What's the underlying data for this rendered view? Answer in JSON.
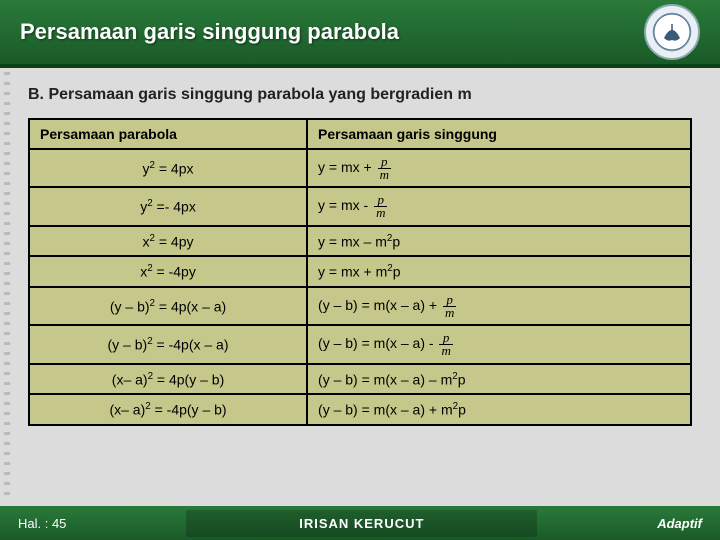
{
  "header": {
    "title": "Persamaan garis singgung parabola"
  },
  "subtitle": "B. Persamaan garis singgung parabola yang bergradien m",
  "table": {
    "headers": {
      "col1": "Persamaan parabola",
      "col2": "Persamaan garis singgung"
    },
    "rows": [
      {
        "lhs_html": "y<sup>2</sup> = 4px",
        "rhs_html": "y = mx + <span class='frac'><span class='n'>p</span><span class='d'>m</span></span>"
      },
      {
        "lhs_html": "y<sup>2</sup> =- 4px",
        "rhs_html": "y = mx - <span class='frac'><span class='n'>p</span><span class='d'>m</span></span>"
      },
      {
        "lhs_html": "x<sup>2</sup> = 4py",
        "rhs_html": "y = mx – m<sup>2</sup>p"
      },
      {
        "lhs_html": "x<sup>2</sup> = -4py",
        "rhs_html": "y = mx + m<sup>2</sup>p"
      },
      {
        "lhs_html": "(y – b)<sup>2</sup> = 4p(x – a)",
        "rhs_html": "(y – b) = m(x – a) + <span class='frac'><span class='n'>p</span><span class='d'>m</span></span>"
      },
      {
        "lhs_html": "(y – b)<sup>2</sup> = -4p(x – a)",
        "rhs_html": "(y – b) = m(x – a) - <span class='frac'><span class='n'>p</span><span class='d'>m</span></span>"
      },
      {
        "lhs_html": "(x– a)<sup>2</sup> = 4p(y – b)",
        "rhs_html": "(y – b) = m(x – a) – m<sup>2</sup>p"
      },
      {
        "lhs_html": "(x– a)<sup>2</sup> = -4p(y – b)",
        "rhs_html": "(y – b) = m(x – a) + m<sup>2</sup>p"
      }
    ]
  },
  "footer": {
    "left": "Hal. : 45",
    "center": "IRISAN KERUCUT",
    "right": "Adaptif"
  },
  "colors": {
    "header_grad_top": "#2a7a3a",
    "header_grad_bottom": "#1a5a28",
    "table_bg": "#c5c88a",
    "page_bg": "#dcdcdc"
  }
}
